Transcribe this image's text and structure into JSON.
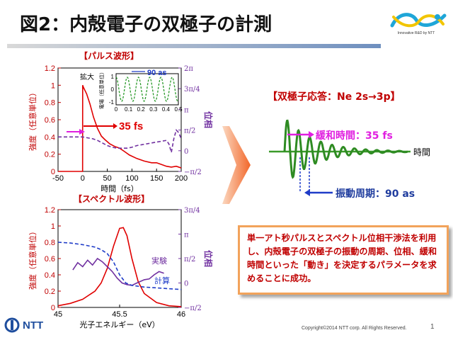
{
  "slide": {
    "title": "図2：内殻電子の双極子の計測",
    "logo_tagline": "Innovative R&D by NTT",
    "copyright": "Copyright©2014  NTT corp. All Rights Reserved.",
    "page_number": "1",
    "footer_brand": "NTT",
    "colors": {
      "accent_red": "#c00000",
      "phase_purple": "#7030a0",
      "green": "#3a9a2a",
      "blue_label": "#1f3c9e",
      "arrow_orange": "#f26b1d"
    }
  },
  "pulse_panel": {
    "heading": "【パルス波形】",
    "inset_label": "拡大",
    "inset_ylabel": "電場（任意単位）",
    "inset_period": "90 as",
    "fs_label": "35 fs"
  },
  "spectrum_panel": {
    "heading": "【スペクトル波形】",
    "legend_experiment": "実験",
    "legend_calc": "計算"
  },
  "response": {
    "heading": "【双極子応答：Ne 2s→3p】",
    "relax_label": "緩和時間：35 fs",
    "time_label": "時間",
    "period_label": "振動周期：90 as"
  },
  "message": "単一アト秒パルスとスペクトル位相干渉法を利用し、内殻電子の双極子の振動の周期、位相、緩和時間といった「動き」を決定するパラメータを求めることに成功。",
  "chart_data": [
    {
      "type": "line",
      "title": "【パルス波形】",
      "xlabel": "時間（fs）",
      "ylabel": "強度（任意単位）",
      "y2label": "位相",
      "xlim": [
        -50,
        200
      ],
      "ylim": [
        0,
        1.2
      ],
      "xticks": [
        "-50",
        "0",
        "50",
        "100",
        "150",
        "200"
      ],
      "yticks": [
        "0",
        "0.2",
        "0.4",
        "0.6",
        "0.8",
        "1",
        "1.2"
      ],
      "y2ticks": [
        "2π",
        "3π/4",
        "π",
        "π/2",
        "0",
        "−π/2"
      ],
      "series": [
        {
          "name": "intensity",
          "color": "#e00000",
          "x": [
            -50,
            -0.1,
            0,
            2,
            8,
            15,
            22,
            30,
            38,
            45,
            55,
            65,
            75,
            85,
            95,
            110,
            125,
            140,
            150,
            160,
            170,
            180,
            190,
            200
          ],
          "y": [
            0,
            0,
            1.0,
            0.97,
            0.9,
            0.78,
            0.63,
            0.5,
            0.41,
            0.37,
            0.32,
            0.29,
            0.27,
            0.23,
            0.19,
            0.15,
            0.12,
            0.1,
            0.1,
            0.08,
            0.06,
            0.05,
            0.06,
            0.04
          ]
        },
        {
          "name": "phase",
          "color": "#7030a0",
          "dashed": true,
          "x": [
            -50,
            -10,
            0,
            10,
            20,
            30,
            40,
            50,
            60,
            70,
            80,
            90,
            100,
            110,
            120,
            130,
            140,
            150,
            160,
            170,
            175,
            180,
            185,
            190,
            195,
            200
          ],
          "y": [
            0.4,
            0.4,
            0.4,
            0.39,
            0.38,
            0.36,
            0.33,
            0.3,
            0.28,
            0.27,
            0.27,
            0.27,
            0.28,
            0.3,
            0.31,
            0.32,
            0.33,
            0.34,
            0.35,
            0.36,
            0.32,
            0.22,
            0.38,
            0.48,
            0.45,
            0.38
          ]
        }
      ],
      "inset": {
        "xlim": [
          0,
          0.5
        ],
        "xticks": [
          "0",
          "0.1",
          "0.2",
          "0.3",
          "0.4",
          "0.5"
        ],
        "yticks": [
          "1",
          "0",
          "-1"
        ],
        "period_fs": 0.09
      }
    },
    {
      "type": "line",
      "title": "【スペクトル波形】",
      "xlabel": "光子エネルギー（eV）",
      "ylabel": "強度（任意単位）",
      "y2label": "位相",
      "xlim": [
        45,
        46
      ],
      "ylim": [
        0,
        1.2
      ],
      "xticks": [
        "45",
        "45.5",
        "46"
      ],
      "yticks": [
        "0",
        "0.2",
        "0.4",
        "0.6",
        "0.8",
        "1",
        "1.2"
      ],
      "y2ticks": [
        "3π/4",
        "π",
        "π/2",
        "0",
        "−π/2"
      ],
      "series": [
        {
          "name": "強度",
          "color": "#e00000",
          "x": [
            45.0,
            45.1,
            45.2,
            45.3,
            45.35,
            45.4,
            45.45,
            45.5,
            45.53,
            45.56,
            45.6,
            45.65,
            45.7,
            45.8,
            45.9,
            46.0
          ],
          "y": [
            0.02,
            0.05,
            0.1,
            0.2,
            0.3,
            0.48,
            0.75,
            0.97,
            0.98,
            0.88,
            0.6,
            0.32,
            0.17,
            0.06,
            0.02,
            0.01
          ]
        },
        {
          "name": "実験",
          "color": "#7030a0",
          "solid": true,
          "x": [
            45.12,
            45.16,
            45.2,
            45.24,
            45.28,
            45.32,
            45.36,
            45.4,
            45.44,
            45.48,
            45.52,
            45.56,
            45.6,
            45.64,
            45.7,
            45.74,
            45.78,
            45.82,
            45.86
          ],
          "y": [
            0.46,
            0.55,
            0.5,
            0.58,
            0.52,
            0.6,
            0.56,
            0.5,
            0.44,
            0.36,
            0.3,
            0.28,
            0.27,
            0.3,
            0.34,
            0.35,
            0.4,
            0.44,
            0.42
          ]
        },
        {
          "name": "計算",
          "color": "#1f3cc8",
          "dashed": true,
          "x": [
            45.0,
            45.1,
            45.2,
            45.3,
            45.35,
            45.4,
            45.45,
            45.5,
            45.55,
            45.6,
            45.7,
            45.8,
            45.9,
            46.0
          ],
          "y": [
            0.8,
            0.79,
            0.77,
            0.74,
            0.71,
            0.66,
            0.56,
            0.4,
            0.3,
            0.27,
            0.25,
            0.24,
            0.23,
            0.22
          ]
        }
      ]
    }
  ]
}
